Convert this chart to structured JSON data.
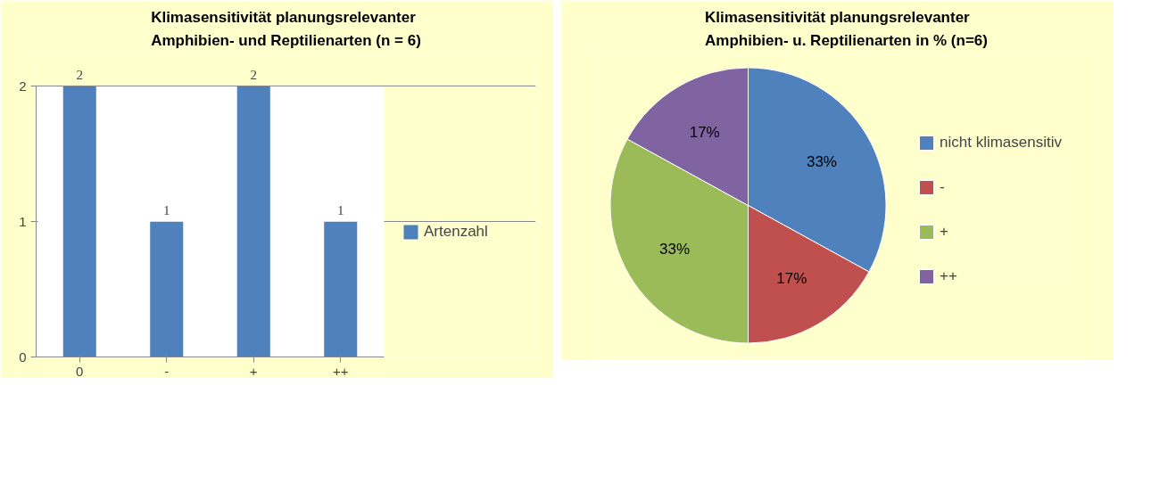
{
  "chart_data": [
    {
      "type": "bar",
      "title": "Klimasensitivität planungsrelevanter\nAmphibien- und Reptilienarten (n = 6)",
      "categories": [
        "0",
        "-",
        "+",
        "++"
      ],
      "series": [
        {
          "name": "Artenzahl",
          "color": "#4f81bd",
          "values": [
            2,
            1,
            2,
            1
          ]
        }
      ],
      "ylim": [
        0,
        2
      ],
      "yticks": [
        0,
        1,
        2
      ],
      "grid": "y",
      "legend": "right",
      "data_labels": true
    },
    {
      "type": "pie",
      "title": "Klimasensitivität planungsrelevanter\nAmphibien- u. Reptilienarten in % (n=6)",
      "categories": [
        "nicht klimasensitiv",
        "-",
        "+",
        "++"
      ],
      "values": [
        33,
        17,
        33,
        17
      ],
      "colors": [
        "#4f81bd",
        "#c0504d",
        "#9bbb59",
        "#8064a2"
      ],
      "value_labels": [
        "33%",
        "17%",
        "33%",
        "17%"
      ],
      "legend": "right"
    }
  ]
}
